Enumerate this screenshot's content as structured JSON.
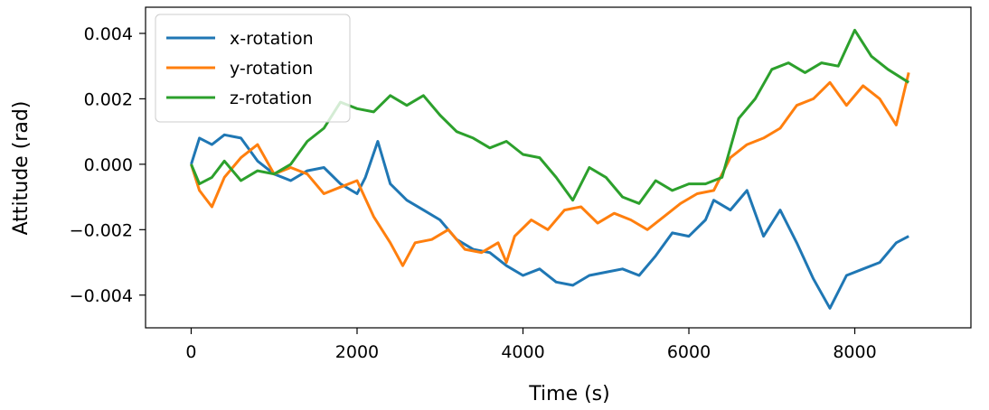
{
  "chart_data": {
    "type": "line",
    "title": "",
    "xlabel": "Time (s)",
    "ylabel": "Attitude (rad)",
    "xlim": [
      -550,
      9400
    ],
    "ylim": [
      -0.005,
      0.0048
    ],
    "x_ticks": [
      0,
      2000,
      4000,
      6000,
      8000
    ],
    "x_tick_labels": [
      "0",
      "2000",
      "4000",
      "6000",
      "8000"
    ],
    "y_ticks": [
      -0.004,
      -0.002,
      0.0,
      0.002,
      0.004
    ],
    "y_tick_labels": [
      "−0.004",
      "−0.002",
      "0.000",
      "0.002",
      "0.004"
    ],
    "grid": false,
    "legend_position": "top-left",
    "series": [
      {
        "name": "x-rotation",
        "color": "#1f77b4",
        "points": [
          [
            0,
            0.0
          ],
          [
            100,
            0.0008
          ],
          [
            250,
            0.0006
          ],
          [
            400,
            0.0009
          ],
          [
            600,
            0.0008
          ],
          [
            800,
            0.0001
          ],
          [
            1000,
            -0.0003
          ],
          [
            1200,
            -0.0005
          ],
          [
            1400,
            -0.0002
          ],
          [
            1600,
            -0.0001
          ],
          [
            1800,
            -0.0006
          ],
          [
            2000,
            -0.0009
          ],
          [
            2100,
            -0.0004
          ],
          [
            2250,
            0.0007
          ],
          [
            2400,
            -0.0006
          ],
          [
            2600,
            -0.0011
          ],
          [
            2800,
            -0.0014
          ],
          [
            3000,
            -0.0017
          ],
          [
            3200,
            -0.0023
          ],
          [
            3400,
            -0.0026
          ],
          [
            3600,
            -0.0027
          ],
          [
            3800,
            -0.0031
          ],
          [
            4000,
            -0.0034
          ],
          [
            4200,
            -0.0032
          ],
          [
            4400,
            -0.0036
          ],
          [
            4600,
            -0.0037
          ],
          [
            4800,
            -0.0034
          ],
          [
            5000,
            -0.0033
          ],
          [
            5200,
            -0.0032
          ],
          [
            5400,
            -0.0034
          ],
          [
            5600,
            -0.0028
          ],
          [
            5800,
            -0.0021
          ],
          [
            6000,
            -0.0022
          ],
          [
            6200,
            -0.0017
          ],
          [
            6300,
            -0.0011
          ],
          [
            6500,
            -0.0014
          ],
          [
            6700,
            -0.0008
          ],
          [
            6900,
            -0.0022
          ],
          [
            7100,
            -0.0014
          ],
          [
            7300,
            -0.0024
          ],
          [
            7500,
            -0.0035
          ],
          [
            7700,
            -0.0044
          ],
          [
            7900,
            -0.0034
          ],
          [
            8100,
            -0.0032
          ],
          [
            8300,
            -0.003
          ],
          [
            8500,
            -0.0024
          ],
          [
            8650,
            -0.0022
          ]
        ]
      },
      {
        "name": "y-rotation",
        "color": "#ff7f0e",
        "points": [
          [
            0,
            0.0
          ],
          [
            100,
            -0.0008
          ],
          [
            250,
            -0.0013
          ],
          [
            400,
            -0.0004
          ],
          [
            600,
            0.0002
          ],
          [
            800,
            0.0006
          ],
          [
            1000,
            -0.0003
          ],
          [
            1200,
            -0.0001
          ],
          [
            1400,
            -0.0003
          ],
          [
            1600,
            -0.0009
          ],
          [
            1800,
            -0.0007
          ],
          [
            2000,
            -0.0005
          ],
          [
            2200,
            -0.0016
          ],
          [
            2400,
            -0.0024
          ],
          [
            2550,
            -0.0031
          ],
          [
            2700,
            -0.0024
          ],
          [
            2900,
            -0.0023
          ],
          [
            3100,
            -0.002
          ],
          [
            3300,
            -0.0026
          ],
          [
            3500,
            -0.0027
          ],
          [
            3700,
            -0.0024
          ],
          [
            3800,
            -0.003
          ],
          [
            3900,
            -0.0022
          ],
          [
            4100,
            -0.0017
          ],
          [
            4300,
            -0.002
          ],
          [
            4500,
            -0.0014
          ],
          [
            4700,
            -0.0013
          ],
          [
            4900,
            -0.0018
          ],
          [
            5100,
            -0.0015
          ],
          [
            5300,
            -0.0017
          ],
          [
            5500,
            -0.002
          ],
          [
            5700,
            -0.0016
          ],
          [
            5900,
            -0.0012
          ],
          [
            6100,
            -0.0009
          ],
          [
            6300,
            -0.0008
          ],
          [
            6500,
            0.0002
          ],
          [
            6700,
            0.0006
          ],
          [
            6900,
            0.0008
          ],
          [
            7100,
            0.0011
          ],
          [
            7300,
            0.0018
          ],
          [
            7500,
            0.002
          ],
          [
            7700,
            0.0025
          ],
          [
            7900,
            0.0018
          ],
          [
            8100,
            0.0024
          ],
          [
            8300,
            0.002
          ],
          [
            8500,
            0.0012
          ],
          [
            8650,
            0.0028
          ]
        ]
      },
      {
        "name": "z-rotation",
        "color": "#2ca02c",
        "points": [
          [
            0,
            0.0
          ],
          [
            100,
            -0.0006
          ],
          [
            250,
            -0.0004
          ],
          [
            400,
            0.0001
          ],
          [
            600,
            -0.0005
          ],
          [
            800,
            -0.0002
          ],
          [
            1000,
            -0.0003
          ],
          [
            1200,
            0.0
          ],
          [
            1400,
            0.0007
          ],
          [
            1600,
            0.0011
          ],
          [
            1800,
            0.0019
          ],
          [
            2000,
            0.0017
          ],
          [
            2200,
            0.0016
          ],
          [
            2400,
            0.0021
          ],
          [
            2600,
            0.0018
          ],
          [
            2800,
            0.0021
          ],
          [
            3000,
            0.0015
          ],
          [
            3200,
            0.001
          ],
          [
            3400,
            0.0008
          ],
          [
            3600,
            0.0005
          ],
          [
            3800,
            0.0007
          ],
          [
            4000,
            0.0003
          ],
          [
            4200,
            0.0002
          ],
          [
            4400,
            -0.0004
          ],
          [
            4600,
            -0.0011
          ],
          [
            4800,
            -0.0001
          ],
          [
            5000,
            -0.0004
          ],
          [
            5200,
            -0.001
          ],
          [
            5400,
            -0.0012
          ],
          [
            5600,
            -0.0005
          ],
          [
            5800,
            -0.0008
          ],
          [
            6000,
            -0.0006
          ],
          [
            6200,
            -0.0006
          ],
          [
            6400,
            -0.0004
          ],
          [
            6600,
            0.0014
          ],
          [
            6800,
            0.002
          ],
          [
            7000,
            0.0029
          ],
          [
            7200,
            0.0031
          ],
          [
            7400,
            0.0028
          ],
          [
            7600,
            0.0031
          ],
          [
            7800,
            0.003
          ],
          [
            8000,
            0.0041
          ],
          [
            8200,
            0.0033
          ],
          [
            8400,
            0.0029
          ],
          [
            8650,
            0.0025
          ]
        ]
      }
    ]
  }
}
